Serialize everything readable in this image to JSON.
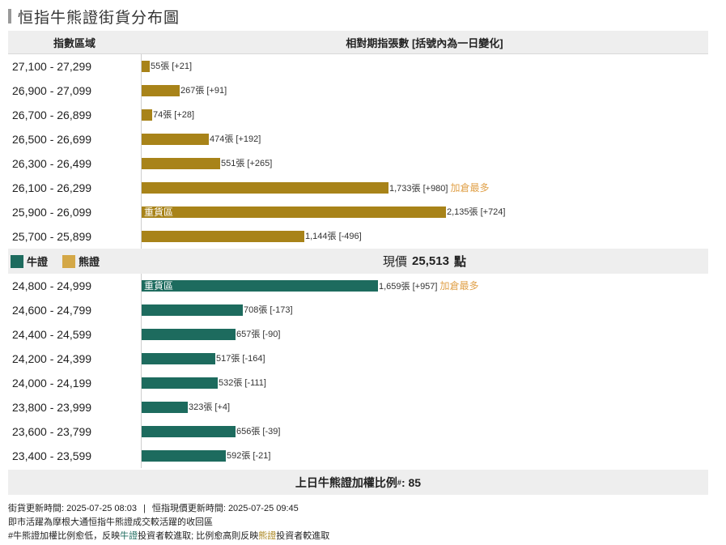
{
  "title": "恒指牛熊證街貨分布圖",
  "header": {
    "range_col": "指數區域",
    "bars_col": "相對期指張數 [括號內為一日變化]"
  },
  "colors": {
    "bear": "#a88319",
    "bear_legend": "#d4a847",
    "bull": "#1d6b5e",
    "add_max": "#e0a14a"
  },
  "legend": {
    "bull": "牛證",
    "bear": "熊證"
  },
  "current_price": {
    "label": "現價",
    "value": "25,513",
    "unit": "點"
  },
  "chart_data": {
    "type": "bar",
    "orientation": "horizontal",
    "xlim": [
      0,
      2135
    ],
    "bear_rows": [
      {
        "range": "27,100 - 27,299",
        "value": 55,
        "change": "+21",
        "label": "55張 [+21]",
        "tag": "",
        "note": ""
      },
      {
        "range": "26,900 - 27,099",
        "value": 267,
        "change": "+91",
        "label": "267張 [+91]",
        "tag": "",
        "note": ""
      },
      {
        "range": "26,700 - 26,899",
        "value": 74,
        "change": "+28",
        "label": "74張 [+28]",
        "tag": "",
        "note": ""
      },
      {
        "range": "26,500 - 26,699",
        "value": 474,
        "change": "+192",
        "label": "474張 [+192]",
        "tag": "",
        "note": ""
      },
      {
        "range": "26,300 - 26,499",
        "value": 551,
        "change": "+265",
        "label": "551張 [+265]",
        "tag": "",
        "note": ""
      },
      {
        "range": "26,100 - 26,299",
        "value": 1733,
        "change": "+980",
        "label": "1,733張 [+980]",
        "tag": "",
        "note": "加倉最多"
      },
      {
        "range": "25,900 - 26,099",
        "value": 2135,
        "change": "+724",
        "label": "2,135張 [+724]",
        "tag": "重貨區",
        "note": ""
      },
      {
        "range": "25,700 - 25,899",
        "value": 1144,
        "change": "-496",
        "label": "1,144張 [-496]",
        "tag": "",
        "note": ""
      }
    ],
    "bull_rows": [
      {
        "range": "24,800 - 24,999",
        "value": 1659,
        "change": "+957",
        "label": "1,659張 [+957]",
        "tag": "重貨區",
        "note": "加倉最多"
      },
      {
        "range": "24,600 - 24,799",
        "value": 708,
        "change": "-173",
        "label": "708張 [-173]",
        "tag": "",
        "note": ""
      },
      {
        "range": "24,400 - 24,599",
        "value": 657,
        "change": "-90",
        "label": "657張 [-90]",
        "tag": "",
        "note": ""
      },
      {
        "range": "24,200 - 24,399",
        "value": 517,
        "change": "-164",
        "label": "517張 [-164]",
        "tag": "",
        "note": ""
      },
      {
        "range": "24,000 - 24,199",
        "value": 532,
        "change": "-111",
        "label": "532張 [-111]",
        "tag": "",
        "note": ""
      },
      {
        "range": "23,800 - 23,999",
        "value": 323,
        "change": "+4",
        "label": "323張 [+4]",
        "tag": "",
        "note": ""
      },
      {
        "range": "23,600 - 23,799",
        "value": 656,
        "change": "-39",
        "label": "656張 [-39]",
        "tag": "",
        "note": ""
      },
      {
        "range": "23,400 - 23,599",
        "value": 592,
        "change": "-21",
        "label": "592張 [-21]",
        "tag": "",
        "note": ""
      }
    ]
  },
  "ratio": {
    "label": "上日牛熊證加權比例",
    "mark": "#",
    "value": "85"
  },
  "footnotes": {
    "stock_update": "街貨更新時間: 2025-07-25 08:03",
    "separator": "|",
    "price_update": "恒指現價更新時間: 2025-07-25 09:45",
    "line2": "即市活躍為摩根大通恒指牛熊證成交較活躍的收回區",
    "line3_a": "#牛熊證加權比例愈低，反映",
    "line3_bull": "牛證",
    "line3_b": "投資者較進取; 比例愈高則反映",
    "line3_bear": "熊證",
    "line3_c": "投資者較進取"
  }
}
